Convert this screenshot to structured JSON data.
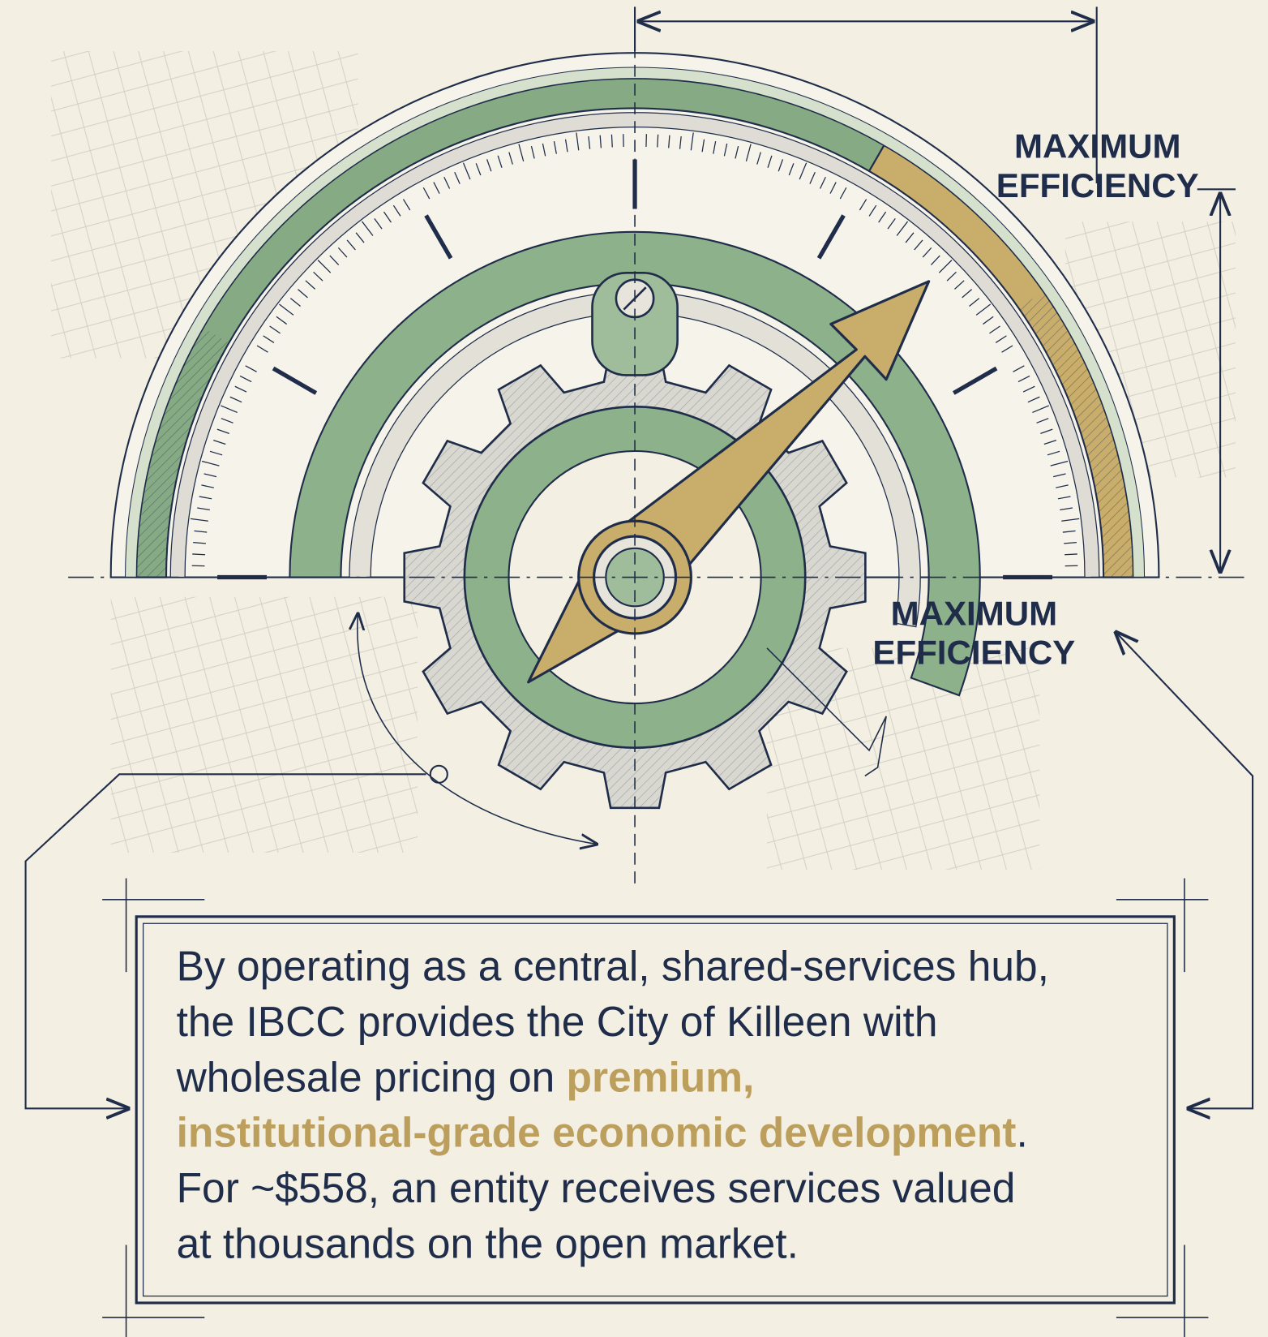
{
  "labels": [
    {
      "lines": [
        "MAXIMUM",
        "EFFICIENCY"
      ]
    },
    {
      "lines": [
        "MAXIMUM",
        "EFFICIENCY"
      ]
    }
  ],
  "text_box": {
    "lines": [
      [
        {
          "text": "By operating as a central, shared-services hub,",
          "highlight": false
        }
      ],
      [
        {
          "text": "the IBCC provides the City of Killeen with",
          "highlight": false
        }
      ],
      [
        {
          "text": "wholesale pricing on ",
          "highlight": false
        },
        {
          "text": "premium,",
          "highlight": true
        }
      ],
      [
        {
          "text": "institutional-grade economic development",
          "highlight": true
        },
        {
          "text": ".",
          "highlight": false
        }
      ],
      [
        {
          "text": "For ~$558, an entity receives services valued",
          "highlight": false
        }
      ],
      [
        {
          "text": "at thousands on the open market.",
          "highlight": false
        }
      ]
    ]
  }
}
